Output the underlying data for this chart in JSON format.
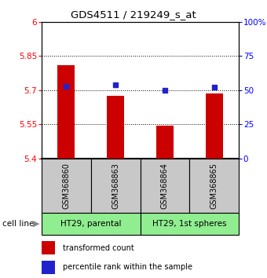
{
  "title": "GDS4511 / 219249_s_at",
  "samples": [
    "GSM368860",
    "GSM368863",
    "GSM368864",
    "GSM368865"
  ],
  "bar_values": [
    5.81,
    5.675,
    5.545,
    5.685
  ],
  "percentile_values": [
    53,
    54,
    50,
    52
  ],
  "bar_color": "#cc0000",
  "dot_color": "#2222cc",
  "ylim_left": [
    5.4,
    6.0
  ],
  "ylim_right": [
    0,
    100
  ],
  "yticks_left": [
    5.4,
    5.55,
    5.7,
    5.85,
    6.0
  ],
  "ytick_labels_left": [
    "5.4",
    "5.55",
    "5.7",
    "5.85",
    "6"
  ],
  "yticks_right": [
    0,
    25,
    50,
    75,
    100
  ],
  "ytick_labels_right": [
    "0",
    "25",
    "50",
    "75",
    "100%"
  ],
  "hlines": [
    5.55,
    5.7,
    5.85
  ],
  "groups": [
    {
      "label": "HT29, parental",
      "samples": [
        0,
        1
      ],
      "color": "#90ee90"
    },
    {
      "label": "HT29, 1st spheres",
      "samples": [
        2,
        3
      ],
      "color": "#90ee90"
    }
  ],
  "cell_line_label": "cell line",
  "legend_bar_label": "transformed count",
  "legend_dot_label": "percentile rank within the sample",
  "bar_bottom": 5.4,
  "bar_width": 0.35,
  "sample_box_color": "#c8c8c8",
  "background_color": "#ffffff"
}
